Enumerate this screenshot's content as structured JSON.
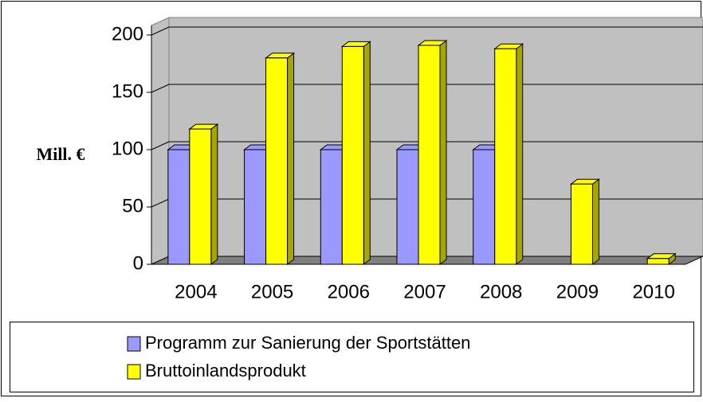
{
  "chart_data": {
    "type": "bar3d",
    "ylabel": "Mill. €",
    "categories": [
      "2004",
      "2005",
      "2006",
      "2007",
      "2008",
      "2009",
      "2010"
    ],
    "series": [
      {
        "name": "Programm zur Sanierung der Sportstätten",
        "color": "#9999ff",
        "values": [
          100,
          100,
          100,
          100,
          100,
          null,
          null
        ]
      },
      {
        "name": "Bruttoinlandsprodukt",
        "color": "#ffff00",
        "values": [
          118,
          180,
          190,
          191,
          188,
          70,
          5
        ]
      }
    ],
    "ylim": [
      0,
      200
    ],
    "yticks": [
      0,
      50,
      100,
      150,
      200
    ],
    "grid": true
  }
}
